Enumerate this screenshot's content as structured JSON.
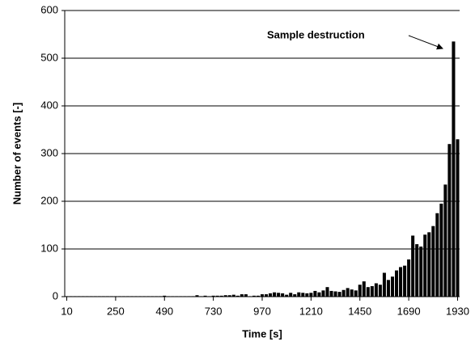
{
  "chart_data": {
    "type": "bar",
    "x_label": "Time [s]",
    "y_label": "Number of events [-]",
    "annotation": "Sample destruction",
    "x": [
      10,
      30,
      50,
      70,
      90,
      110,
      130,
      150,
      170,
      190,
      210,
      230,
      250,
      270,
      290,
      310,
      330,
      350,
      370,
      390,
      410,
      430,
      450,
      470,
      490,
      510,
      530,
      550,
      570,
      590,
      610,
      630,
      650,
      670,
      690,
      710,
      730,
      750,
      770,
      790,
      810,
      830,
      850,
      870,
      890,
      910,
      930,
      950,
      970,
      990,
      1010,
      1030,
      1050,
      1070,
      1090,
      1110,
      1130,
      1150,
      1170,
      1190,
      1210,
      1230,
      1250,
      1270,
      1290,
      1310,
      1330,
      1350,
      1370,
      1390,
      1410,
      1430,
      1450,
      1470,
      1490,
      1510,
      1530,
      1550,
      1570,
      1590,
      1610,
      1630,
      1650,
      1670,
      1690,
      1710,
      1730,
      1750,
      1770,
      1790,
      1810,
      1830,
      1850,
      1870,
      1890,
      1910,
      1930
    ],
    "values": [
      1,
      1,
      1,
      1,
      1,
      1,
      1,
      1,
      1,
      1,
      1,
      1,
      1,
      1,
      1,
      1,
      1,
      1,
      1,
      1,
      1,
      1,
      1,
      1,
      2,
      1,
      1,
      1,
      1,
      1,
      1,
      1,
      3,
      1,
      2,
      1,
      2,
      2,
      2,
      3,
      3,
      4,
      2,
      5,
      5,
      1,
      2,
      2,
      5,
      5,
      7,
      9,
      8,
      7,
      4,
      8,
      5,
      9,
      8,
      7,
      8,
      12,
      9,
      13,
      20,
      12,
      11,
      10,
      14,
      18,
      15,
      13,
      25,
      32,
      20,
      22,
      28,
      25,
      50,
      35,
      42,
      55,
      62,
      65,
      78,
      128,
      110,
      105,
      130,
      135,
      148,
      175,
      195,
      235,
      320,
      535,
      330
    ],
    "color": "#000000",
    "xlim": [
      0,
      1940
    ],
    "xticks": [
      10,
      250,
      490,
      730,
      970,
      1210,
      1450,
      1690,
      1930
    ],
    "ylim": [
      0,
      600
    ],
    "yticks": [
      0,
      100,
      200,
      300,
      400,
      500,
      600
    ],
    "grid": true
  }
}
